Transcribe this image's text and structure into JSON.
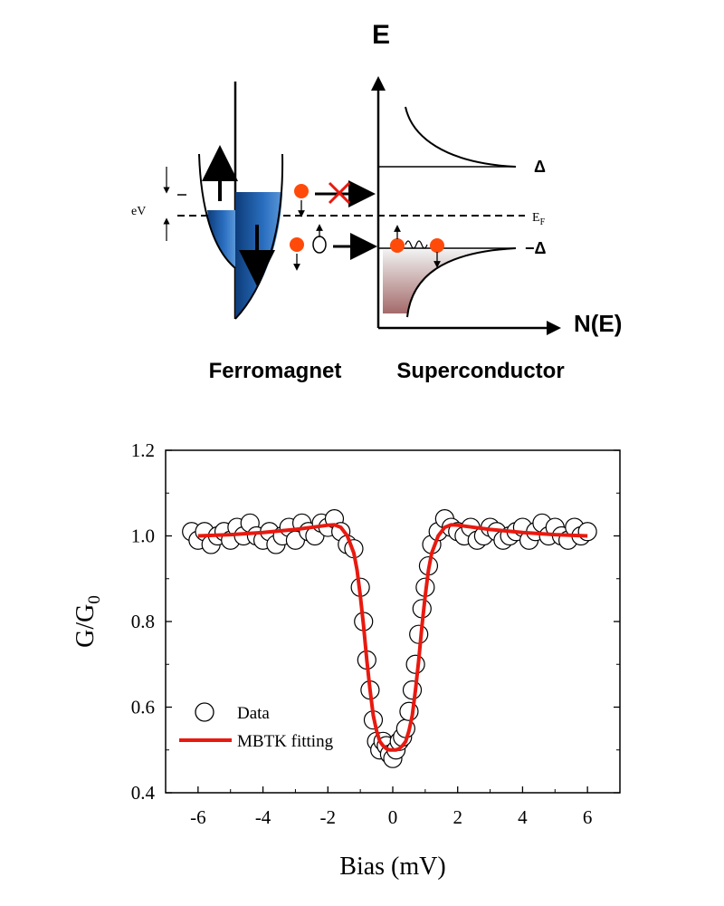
{
  "schematic": {
    "axis_y_label": "E",
    "axis_x_label": "N(E)",
    "delta_label": "Δ",
    "minus_delta_label": "−Δ",
    "fermi_label_main": "E",
    "fermi_label_sub": "F",
    "ev_label": "eV",
    "left_caption": "Ferromagnet",
    "right_caption": "Superconductor",
    "colors": {
      "ferromagnet_band": "#1f5fae",
      "electron": "#ff4a0a",
      "blocked_cross": "#e8190f",
      "superconductor_fill": "#a46a6a"
    }
  },
  "chart_data": {
    "type": "scatter",
    "xlabel": "Bias (mV)",
    "ylabel_main": "G/G",
    "ylabel_sub": "0",
    "xlim": [
      -7,
      7
    ],
    "ylim": [
      0.4,
      1.2
    ],
    "xticks": [
      -6,
      -4,
      -2,
      0,
      2,
      4,
      6
    ],
    "yticks": [
      0.4,
      0.6,
      0.8,
      1.0,
      1.2
    ],
    "xtick_labels": [
      "-6",
      "-4",
      "-2",
      "0",
      "2",
      "4",
      "6"
    ],
    "ytick_labels": [
      "0.4",
      "0.6",
      "0.8",
      "1.0",
      "1.2"
    ],
    "legend_position": "bottom-left",
    "series": [
      {
        "name": "Data",
        "style": "open-circles",
        "x": [
          -6.2,
          -6.0,
          -5.8,
          -5.6,
          -5.4,
          -5.2,
          -5.0,
          -4.8,
          -4.6,
          -4.4,
          -4.2,
          -4.0,
          -3.8,
          -3.6,
          -3.4,
          -3.2,
          -3.0,
          -2.8,
          -2.6,
          -2.4,
          -2.2,
          -2.0,
          -1.8,
          -1.6,
          -1.4,
          -1.2,
          -1.0,
          -0.9,
          -0.8,
          -0.7,
          -0.6,
          -0.5,
          -0.4,
          -0.3,
          -0.2,
          -0.1,
          0.0,
          0.1,
          0.2,
          0.3,
          0.4,
          0.5,
          0.6,
          0.7,
          0.8,
          0.9,
          1.0,
          1.1,
          1.2,
          1.4,
          1.6,
          1.8,
          2.0,
          2.2,
          2.4,
          2.6,
          2.8,
          3.0,
          3.2,
          3.4,
          3.6,
          3.8,
          4.0,
          4.2,
          4.4,
          4.6,
          4.8,
          5.0,
          5.2,
          5.4,
          5.6,
          5.8,
          6.0
        ],
        "y": [
          1.01,
          0.99,
          1.01,
          0.98,
          1.0,
          1.01,
          0.99,
          1.02,
          1.0,
          1.03,
          1.0,
          0.99,
          1.01,
          0.98,
          1.0,
          1.02,
          0.99,
          1.03,
          1.01,
          1.0,
          1.03,
          1.02,
          1.04,
          1.01,
          0.98,
          0.97,
          0.88,
          0.8,
          0.71,
          0.64,
          0.57,
          0.52,
          0.5,
          0.52,
          0.51,
          0.49,
          0.48,
          0.5,
          0.52,
          0.53,
          0.55,
          0.59,
          0.64,
          0.7,
          0.77,
          0.83,
          0.88,
          0.93,
          0.98,
          1.01,
          1.04,
          1.02,
          1.01,
          1.0,
          1.02,
          0.99,
          1.0,
          1.02,
          1.01,
          0.99,
          1.0,
          1.01,
          1.02,
          0.99,
          1.01,
          1.03,
          1.0,
          1.02,
          1.0,
          0.99,
          1.02,
          1.0,
          1.01
        ]
      },
      {
        "name": "MBTK fitting",
        "style": "line",
        "color": "#e8190f",
        "x": [
          -6.0,
          -5.0,
          -4.0,
          -3.0,
          -2.5,
          -2.0,
          -1.8,
          -1.6,
          -1.4,
          -1.2,
          -1.1,
          -1.0,
          -0.9,
          -0.8,
          -0.7,
          -0.6,
          -0.5,
          -0.4,
          -0.3,
          -0.2,
          -0.1,
          0.0,
          0.1,
          0.2,
          0.3,
          0.4,
          0.5,
          0.6,
          0.7,
          0.8,
          0.9,
          1.0,
          1.1,
          1.2,
          1.4,
          1.6,
          1.8,
          2.0,
          2.5,
          3.0,
          4.0,
          5.0,
          6.0
        ],
        "y": [
          1.0,
          1.003,
          1.008,
          1.015,
          1.02,
          1.025,
          1.026,
          1.02,
          1.0,
          0.96,
          0.92,
          0.86,
          0.79,
          0.71,
          0.64,
          0.58,
          0.545,
          0.52,
          0.51,
          0.503,
          0.5,
          0.5,
          0.5,
          0.503,
          0.51,
          0.52,
          0.545,
          0.58,
          0.64,
          0.71,
          0.79,
          0.86,
          0.92,
          0.96,
          1.0,
          1.02,
          1.026,
          1.025,
          1.02,
          1.015,
          1.008,
          1.003,
          1.0
        ]
      }
    ]
  }
}
